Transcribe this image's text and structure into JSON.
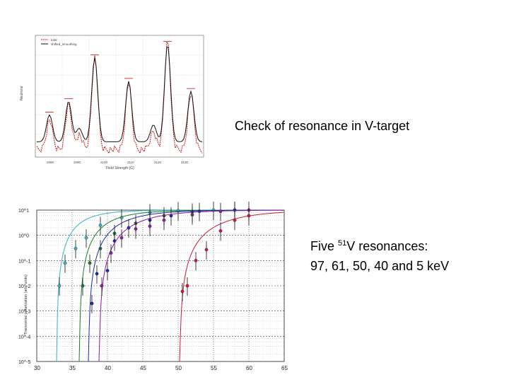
{
  "captions": {
    "check": "Check of resonance in V-target",
    "five_prefix": "Five ",
    "five_sup": "51",
    "five_suffix": "V resonances:",
    "energies": "97, 61, 50, 40 and 5 keV"
  },
  "colors": {
    "grid": "#333333",
    "series_dark": "#111111",
    "series_red": "#cc1111",
    "curves": [
      "#35b3c6",
      "#1a7a2a",
      "#1a2aa0",
      "#8a1ca8",
      "#c81a3a"
    ]
  },
  "chart_data": [
    {
      "type": "line",
      "xlabel": "Field Strength (G)",
      "ylabel": "Neutrons",
      "legend": [
        "total",
        "shifted_smoothing"
      ],
      "x_ticks": [
        "2080",
        "2090",
        "2100",
        "2110",
        "2120",
        "2130"
      ]
    },
    {
      "type": "line",
      "ylabel": "Transverse polarization (arb. units)",
      "xlim": [
        30,
        65
      ],
      "ylog": true,
      "x_ticks": [
        "30",
        "35",
        "40",
        "45",
        "50",
        "55",
        "60",
        "65"
      ],
      "y_ticks": [
        "10^1",
        "10^0",
        "10^-1",
        "10^-2",
        "10^-3",
        "10^-4",
        "10^-5"
      ],
      "series": [
        {
          "onset": 32.8,
          "points": [
            [
              33.2,
              0.01
            ],
            [
              34,
              0.08
            ],
            [
              35.5,
              0.3
            ],
            [
              37,
              0.8
            ],
            [
              39,
              2.5
            ],
            [
              42,
              5
            ],
            [
              46,
              8
            ],
            [
              50,
              9.5
            ],
            [
              55,
              10
            ]
          ]
        },
        {
          "onset": 36,
          "points": [
            [
              36.5,
              0.01
            ],
            [
              37.5,
              0.08
            ],
            [
              39,
              0.3
            ],
            [
              41,
              1.2
            ],
            [
              44,
              3
            ],
            [
              48,
              6
            ],
            [
              52,
              8.5
            ],
            [
              58,
              10
            ]
          ]
        },
        {
          "onset": 37.3,
          "points": [
            [
              37.8,
              0.002
            ],
            [
              38.5,
              0.03
            ],
            [
              40,
              0.04
            ],
            [
              41,
              0.6
            ],
            [
              43,
              2
            ],
            [
              46,
              4
            ],
            [
              49,
              6
            ],
            [
              53,
              9
            ],
            [
              58,
              10
            ]
          ]
        },
        {
          "onset": 38.8,
          "points": [
            [
              39.2,
              0.01
            ],
            [
              40.5,
              0.2
            ],
            [
              42,
              0.8
            ],
            [
              44,
              1.8
            ],
            [
              46,
              2.3
            ],
            [
              48,
              4
            ],
            [
              52,
              6.5
            ],
            [
              56,
              9
            ],
            [
              60,
              10
            ]
          ]
        },
        {
          "onset": 50.2,
          "points": [
            [
              50.6,
              0.006
            ],
            [
              51.3,
              0.01
            ],
            [
              52.5,
              0.1
            ],
            [
              54,
              0.27
            ],
            [
              56,
              1.5
            ],
            [
              58,
              4
            ],
            [
              60,
              6
            ]
          ]
        }
      ]
    }
  ]
}
